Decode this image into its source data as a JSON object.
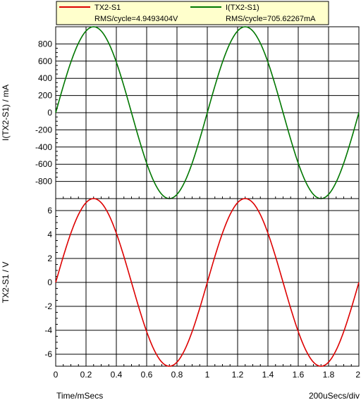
{
  "legend": {
    "entries": [
      {
        "name": "TX2-S1",
        "rms": "RMS/cycle=4.9493404V",
        "color": "#dd0000"
      },
      {
        "name": "I(TX2-S1)",
        "rms": "RMS/cycle=705.62267mA",
        "color": "#007700"
      }
    ],
    "background": "#ffffcc"
  },
  "footer": {
    "x_axis_label": "Time/mSecs",
    "scale_label": "200uSecs/div"
  },
  "chart_data": [
    {
      "type": "line",
      "ylabel": "I(TX2-S1) / mA",
      "xlim": [
        0,
        2
      ],
      "ylim": [
        -1000,
        1000
      ],
      "yticks": [
        -800,
        -600,
        -400,
        -200,
        0,
        200,
        400,
        600,
        800
      ],
      "xticks": [
        0,
        0.2,
        0.4,
        0.6,
        0.8,
        1,
        1.2,
        1.4,
        1.6,
        1.8,
        2
      ],
      "grid": true,
      "series": [
        {
          "name": "I(TX2-S1)",
          "color": "#007700",
          "x": [
            0,
            0.05,
            0.1,
            0.15,
            0.2,
            0.25,
            0.3,
            0.35,
            0.4,
            0.45,
            0.5,
            0.55,
            0.6,
            0.65,
            0.7,
            0.75,
            0.8,
            0.85,
            0.9,
            0.95,
            1.0,
            1.05,
            1.1,
            1.15,
            1.2,
            1.25,
            1.3,
            1.35,
            1.4,
            1.45,
            1.5,
            1.55,
            1.6,
            1.65,
            1.7,
            1.75,
            1.8,
            1.85,
            1.9,
            1.95,
            2.0
          ],
          "values": [
            0,
            309,
            588,
            809,
            951,
            1000,
            951,
            809,
            588,
            309,
            0,
            -309,
            -588,
            -809,
            -951,
            -1000,
            -951,
            -809,
            -588,
            -309,
            0,
            309,
            588,
            809,
            951,
            1000,
            951,
            809,
            588,
            309,
            0,
            -309,
            -588,
            -809,
            -951,
            -1000,
            -951,
            -809,
            -588,
            -309,
            0
          ]
        }
      ]
    },
    {
      "type": "line",
      "ylabel": "TX2-S1 / V",
      "xlim": [
        0,
        2
      ],
      "ylim": [
        -7,
        7
      ],
      "yticks": [
        -6,
        -4,
        -2,
        0,
        2,
        4,
        6
      ],
      "xticks": [
        0,
        0.2,
        0.4,
        0.6,
        0.8,
        1,
        1.2,
        1.4,
        1.6,
        1.8,
        2
      ],
      "xticklabels": [
        "0",
        "0.2",
        "0.4",
        "0.6",
        "0.8",
        "1",
        "1.2",
        "1.4",
        "1.6",
        "1.8",
        "2"
      ],
      "grid": true,
      "series": [
        {
          "name": "TX2-S1",
          "color": "#dd0000",
          "x": [
            0,
            0.05,
            0.1,
            0.15,
            0.2,
            0.25,
            0.3,
            0.35,
            0.4,
            0.45,
            0.5,
            0.55,
            0.6,
            0.65,
            0.7,
            0.75,
            0.8,
            0.85,
            0.9,
            0.95,
            1.0,
            1.05,
            1.1,
            1.15,
            1.2,
            1.25,
            1.3,
            1.35,
            1.4,
            1.45,
            1.5,
            1.55,
            1.6,
            1.65,
            1.7,
            1.75,
            1.8,
            1.85,
            1.9,
            1.95,
            2.0
          ],
          "values": [
            0,
            2.16,
            4.11,
            5.66,
            6.66,
            7.0,
            6.66,
            5.66,
            4.11,
            2.16,
            0,
            -2.16,
            -4.11,
            -5.66,
            -6.66,
            -7.0,
            -6.66,
            -5.66,
            -4.11,
            -2.16,
            0,
            2.16,
            4.11,
            5.66,
            6.66,
            7.0,
            6.66,
            5.66,
            4.11,
            2.16,
            0,
            -2.16,
            -4.11,
            -5.66,
            -6.66,
            -7.0,
            -6.66,
            -5.66,
            -4.11,
            -2.16,
            0
          ]
        }
      ]
    }
  ]
}
